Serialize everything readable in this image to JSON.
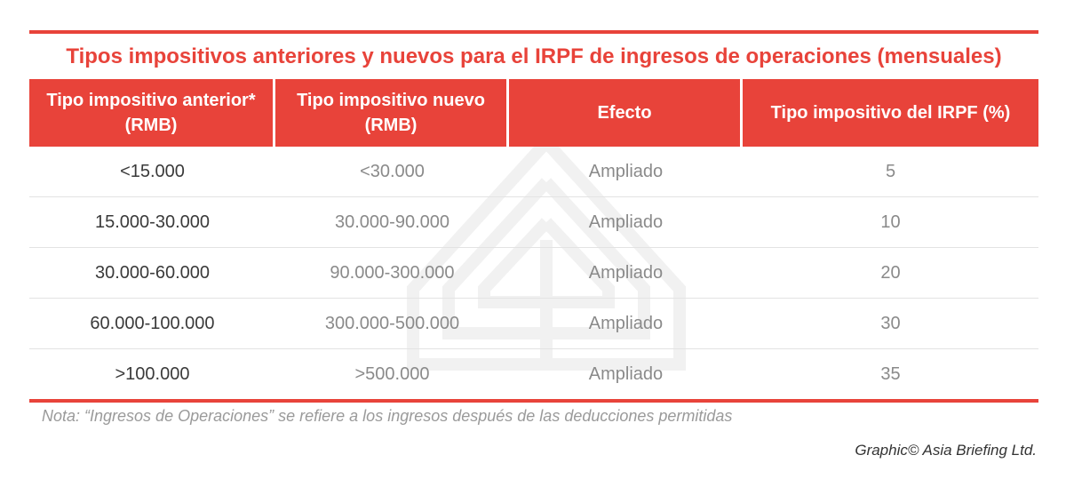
{
  "title": "Tipos impositivos anteriores y nuevos para el IRPF de ingresos de operaciones (mensuales)",
  "table": {
    "headers": [
      "Tipo impositivo anterior* (RMB)",
      "Tipo impositivo nuevo (RMB)",
      "Efecto",
      "Tipo impositivo del IRPF (%)"
    ],
    "rows": [
      {
        "previous": "<15.000",
        "new": "<30.000",
        "effect": "Ampliado",
        "rate": "5"
      },
      {
        "previous": "15.000-30.000",
        "new": "30.000-90.000",
        "effect": "Ampliado",
        "rate": "10"
      },
      {
        "previous": "30.000-60.000",
        "new": "90.000-300.000",
        "effect": "Ampliado",
        "rate": "20"
      },
      {
        "previous": "60.000-100.000",
        "new": "300.000-500.000",
        "effect": "Ampliado",
        "rate": "30"
      },
      {
        "previous": ">100.000",
        "new": ">500.000",
        "effect": "Ampliado",
        "rate": "35"
      }
    ]
  },
  "note": "Nota: “Ingresos de Operaciones” se refiere a los ingresos después de las deducciones permitidas",
  "credit": "Graphic© Asia Briefing Ltd.",
  "colors": {
    "accent": "#e8433a",
    "header_text": "#ffffff",
    "body_text": "#8a8a8a",
    "note_text": "#9a9a9a"
  },
  "icons": {
    "watermark": "asia-briefing-logo-watermark"
  }
}
